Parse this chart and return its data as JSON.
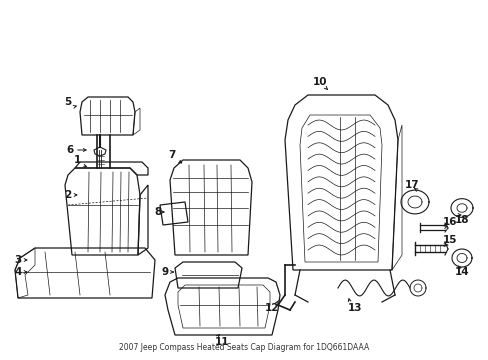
{
  "title": "2007 Jeep Compass Heated Seats Cap Diagram for 1DQ661DAAA",
  "bg_color": "#ffffff",
  "line_color": "#1a1a1a",
  "fig_width": 4.89,
  "fig_height": 3.6,
  "dpi": 100
}
